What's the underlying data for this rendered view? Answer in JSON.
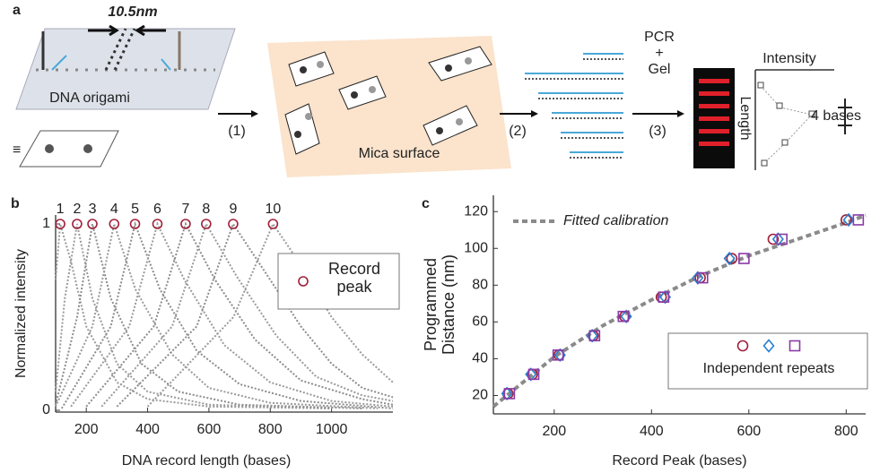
{
  "diagram": {
    "panel": "a",
    "spacing": "10.5nm",
    "origami": "DNA origami",
    "equiv": "≡",
    "step1": "(1)",
    "surface": "Mica surface",
    "step2": "(2)",
    "pcr": "PCR",
    "plus": "+",
    "gel": "Gel",
    "step3": "(3)",
    "intensity": "Intensity",
    "length": "Length",
    "bases": "4 bases"
  },
  "chart_data": [
    {
      "type": "line",
      "panel": "b",
      "x_label": "DNA record length (bases)",
      "y_label": "Normalized intensity",
      "xlim": [
        100,
        1200
      ],
      "ylim": [
        0,
        1
      ],
      "xticks": [
        200,
        400,
        600,
        800,
        1000
      ],
      "yticks": [
        0,
        1
      ],
      "series": [
        {
          "name": "1",
          "mode": "line",
          "color": "#9a9a9a",
          "x": [
            100,
            115,
            150,
            200,
            300,
            400,
            600,
            1000
          ],
          "values": [
            0.7,
            1,
            0.8,
            0.45,
            0.15,
            0.06,
            0.02,
            0.01
          ]
        },
        {
          "name": "2",
          "mode": "line",
          "color": "#9a9a9a",
          "x": [
            100,
            130,
            170,
            220,
            300,
            400,
            600,
            1000
          ],
          "values": [
            0.1,
            0.6,
            1,
            0.6,
            0.25,
            0.1,
            0.03,
            0.01
          ]
        },
        {
          "name": "3",
          "mode": "line",
          "color": "#8c8c8c",
          "x": [
            100,
            170,
            220,
            280,
            380,
            500,
            700,
            1100
          ],
          "values": [
            0.03,
            0.5,
            1,
            0.6,
            0.25,
            0.1,
            0.03,
            0.01
          ]
        },
        {
          "name": "4",
          "mode": "line",
          "color": "#9a9a9a",
          "x": [
            100,
            220,
            291,
            360,
            480,
            600,
            800,
            1150
          ],
          "values": [
            0.02,
            0.45,
            1,
            0.65,
            0.3,
            0.12,
            0.04,
            0.01
          ]
        },
        {
          "name": "5",
          "mode": "line",
          "color": "#8c8c8c",
          "x": [
            120,
            280,
            359,
            440,
            560,
            700,
            900,
            1200
          ],
          "values": [
            0.01,
            0.45,
            1,
            0.65,
            0.32,
            0.14,
            0.05,
            0.01
          ]
        },
        {
          "name": "6",
          "mode": "line",
          "color": "#9a9a9a",
          "x": [
            150,
            340,
            432,
            520,
            650,
            800,
            1000,
            1200
          ],
          "values": [
            0.02,
            0.45,
            1,
            0.7,
            0.35,
            0.15,
            0.05,
            0.02
          ]
        },
        {
          "name": "7",
          "mode": "line",
          "color": "#8c8c8c",
          "x": [
            200,
            420,
            524,
            620,
            750,
            900,
            1100,
            1200
          ],
          "values": [
            0.02,
            0.45,
            1,
            0.7,
            0.38,
            0.16,
            0.06,
            0.03
          ]
        },
        {
          "name": "8",
          "mode": "line",
          "color": "#9a9a9a",
          "x": [
            250,
            480,
            591,
            690,
            820,
            950,
            1100,
            1200
          ],
          "values": [
            0.02,
            0.45,
            1,
            0.72,
            0.4,
            0.18,
            0.08,
            0.05
          ]
        },
        {
          "name": "9",
          "mode": "line",
          "color": "#8c8c8c",
          "x": [
            300,
            560,
            679,
            780,
            900,
            1000,
            1100,
            1200
          ],
          "values": [
            0.02,
            0.45,
            1,
            0.75,
            0.45,
            0.25,
            0.12,
            0.07
          ]
        },
        {
          "name": "10",
          "mode": "line",
          "color": "#9a9a9a",
          "x": [
            400,
            680,
            809,
            900,
            1000,
            1100,
            1200
          ],
          "values": [
            0.02,
            0.5,
            1,
            0.78,
            0.5,
            0.3,
            0.15
          ]
        },
        {
          "name": "Record peak",
          "mode": "marker",
          "marker": "circle",
          "color": "#a0203a",
          "x": [
            115,
            170,
            220,
            291,
            359,
            432,
            524,
            591,
            679,
            809
          ],
          "values": [
            1,
            1,
            1,
            1,
            1,
            1,
            1,
            1,
            1,
            1
          ]
        }
      ]
    },
    {
      "type": "scatter",
      "panel": "c",
      "x_label": "Record Peak (bases)",
      "y_label": "Programmed Distance (nm)",
      "xlim": [
        75,
        840
      ],
      "ylim": [
        10,
        124
      ],
      "xticks": [
        200,
        400,
        600,
        800
      ],
      "yticks": [
        20,
        40,
        60,
        80,
        100,
        120
      ],
      "group_label": "Independent repeats",
      "series": [
        {
          "name": "Fitted calibration",
          "mode": "line",
          "color": "#8a8a8a",
          "x": [
            75,
            200,
            300,
            400,
            500,
            600,
            700,
            800,
            840
          ],
          "values": [
            14,
            41,
            58,
            72,
            85,
            96,
            105,
            114,
            118
          ]
        },
        {
          "mode": "marker",
          "marker": "circle",
          "color": "#a0203a",
          "x": [
            105,
            155,
            210,
            280,
            345,
            420,
            500,
            565,
            650,
            800
          ],
          "values": [
            21,
            31.5,
            42,
            52.5,
            63,
            73.5,
            84,
            94.5,
            105,
            115.5
          ]
        },
        {
          "mode": "marker",
          "marker": "diamond",
          "color": "#2a7fd0",
          "x": [
            103,
            152,
            212,
            278,
            348,
            428,
            495,
            560,
            660,
            805
          ],
          "values": [
            21,
            31.5,
            42,
            52.5,
            63,
            73.5,
            84,
            94.5,
            105,
            115.5
          ]
        },
        {
          "mode": "marker",
          "marker": "square",
          "color": "#8a3aa8",
          "x": [
            108,
            158,
            208,
            283,
            342,
            425,
            505,
            590,
            668,
            825
          ],
          "values": [
            21,
            31.5,
            42,
            52.5,
            63,
            73.5,
            84,
            94.5,
            105,
            115.5
          ]
        }
      ]
    }
  ]
}
